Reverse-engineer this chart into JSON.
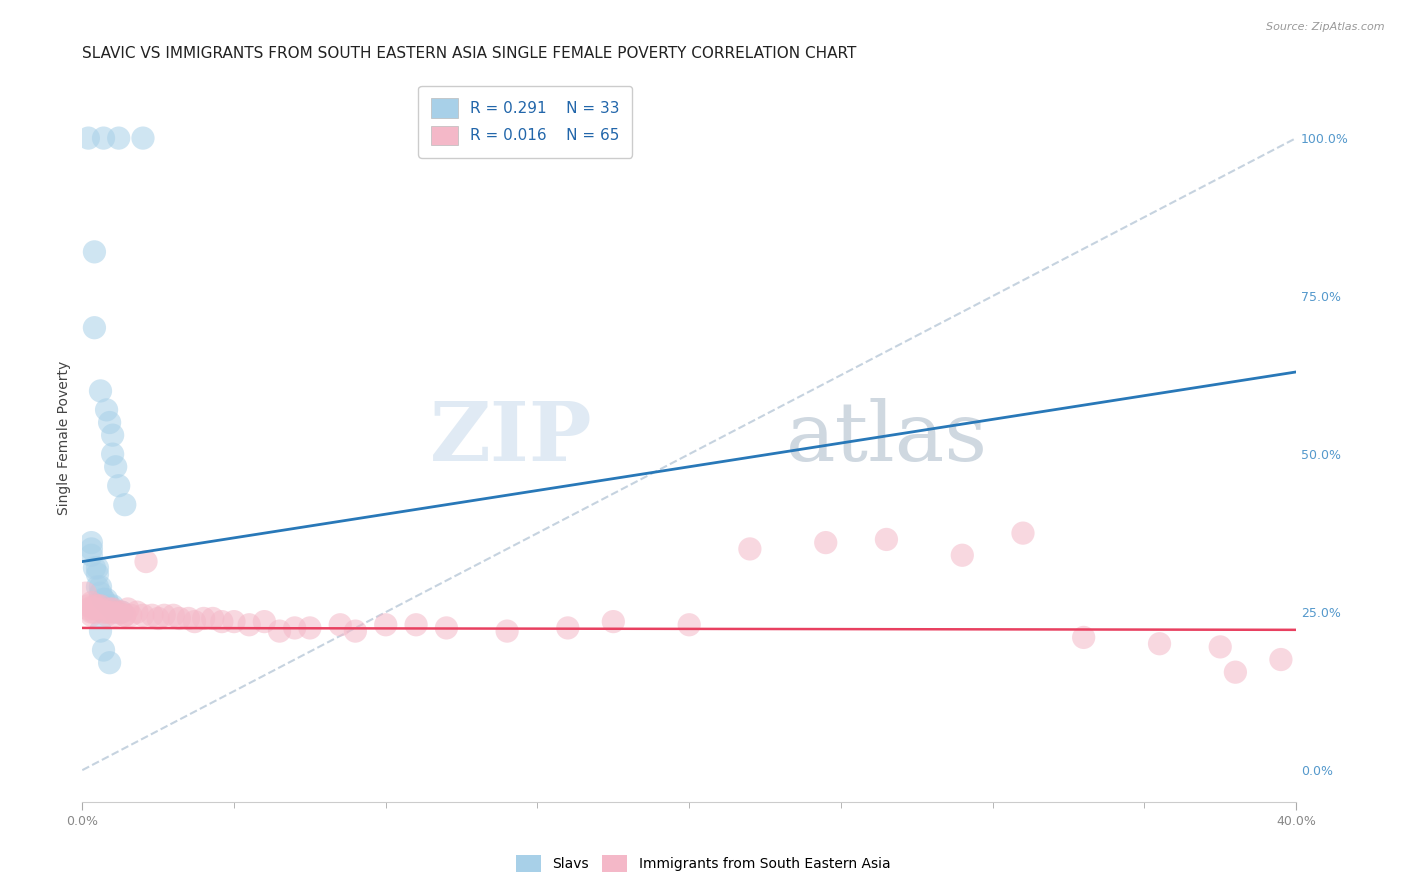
{
  "title": "SLAVIC VS IMMIGRANTS FROM SOUTH EASTERN ASIA SINGLE FEMALE POVERTY CORRELATION CHART",
  "source": "Source: ZipAtlas.com",
  "ylabel": "Single Female Poverty",
  "right_yticks": [
    0.0,
    0.25,
    0.5,
    0.75,
    1.0
  ],
  "right_yticklabels": [
    "0.0%",
    "25.0%",
    "50.0%",
    "75.0%",
    "100.0%"
  ],
  "xlim": [
    0.0,
    0.4
  ],
  "ylim": [
    -0.05,
    1.1
  ],
  "legend_blue_R": "R = 0.291",
  "legend_blue_N": "N = 33",
  "legend_pink_R": "R = 0.016",
  "legend_pink_N": "N = 65",
  "label_slavs": "Slavs",
  "label_immigrants": "Immigrants from South Eastern Asia",
  "blue_color": "#a8d0e8",
  "pink_color": "#f4b8c8",
  "blue_line_color": "#2878b8",
  "pink_line_color": "#e84060",
  "dashed_line_color": "#b8c8d8",
  "watermark_zip": "ZIP",
  "watermark_atlas": "atlas",
  "slavs_x": [
    0.002,
    0.007,
    0.012,
    0.02,
    0.004,
    0.004,
    0.006,
    0.008,
    0.009,
    0.01,
    0.01,
    0.011,
    0.012,
    0.014,
    0.003,
    0.003,
    0.003,
    0.004,
    0.005,
    0.005,
    0.005,
    0.006,
    0.006,
    0.007,
    0.007,
    0.008,
    0.009,
    0.01,
    0.011,
    0.013,
    0.006,
    0.007,
    0.009
  ],
  "slavs_y": [
    1.0,
    1.0,
    1.0,
    1.0,
    0.82,
    0.7,
    0.6,
    0.57,
    0.55,
    0.53,
    0.5,
    0.48,
    0.45,
    0.42,
    0.36,
    0.35,
    0.34,
    0.32,
    0.32,
    0.31,
    0.29,
    0.29,
    0.28,
    0.27,
    0.27,
    0.27,
    0.26,
    0.26,
    0.25,
    0.25,
    0.22,
    0.19,
    0.17
  ],
  "immigrants_x": [
    0.001,
    0.002,
    0.002,
    0.003,
    0.003,
    0.003,
    0.004,
    0.004,
    0.004,
    0.005,
    0.005,
    0.006,
    0.006,
    0.007,
    0.008,
    0.008,
    0.009,
    0.009,
    0.01,
    0.01,
    0.011,
    0.012,
    0.013,
    0.014,
    0.014,
    0.015,
    0.016,
    0.018,
    0.02,
    0.021,
    0.023,
    0.025,
    0.027,
    0.03,
    0.032,
    0.035,
    0.037,
    0.04,
    0.043,
    0.046,
    0.05,
    0.055,
    0.06,
    0.065,
    0.07,
    0.075,
    0.085,
    0.09,
    0.1,
    0.11,
    0.12,
    0.14,
    0.16,
    0.175,
    0.2,
    0.22,
    0.245,
    0.265,
    0.29,
    0.31,
    0.33,
    0.355,
    0.375,
    0.395,
    0.38
  ],
  "immigrants_y": [
    0.28,
    0.26,
    0.255,
    0.265,
    0.25,
    0.245,
    0.26,
    0.255,
    0.25,
    0.26,
    0.255,
    0.26,
    0.255,
    0.25,
    0.25,
    0.245,
    0.255,
    0.25,
    0.25,
    0.255,
    0.245,
    0.25,
    0.25,
    0.245,
    0.245,
    0.255,
    0.245,
    0.25,
    0.245,
    0.33,
    0.245,
    0.24,
    0.245,
    0.245,
    0.24,
    0.24,
    0.235,
    0.24,
    0.24,
    0.235,
    0.235,
    0.23,
    0.235,
    0.22,
    0.225,
    0.225,
    0.23,
    0.22,
    0.23,
    0.23,
    0.225,
    0.22,
    0.225,
    0.235,
    0.23,
    0.35,
    0.36,
    0.365,
    0.34,
    0.375,
    0.21,
    0.2,
    0.195,
    0.175,
    0.155
  ],
  "grid_color": "#d8e0e8",
  "title_fontsize": 11,
  "axis_label_fontsize": 10,
  "tick_fontsize": 9,
  "legend_fontsize": 11,
  "blue_line_x": [
    0.0,
    0.4
  ],
  "blue_line_y": [
    0.33,
    0.63
  ],
  "pink_line_x": [
    0.0,
    0.4
  ],
  "pink_line_y": [
    0.225,
    0.222
  ]
}
